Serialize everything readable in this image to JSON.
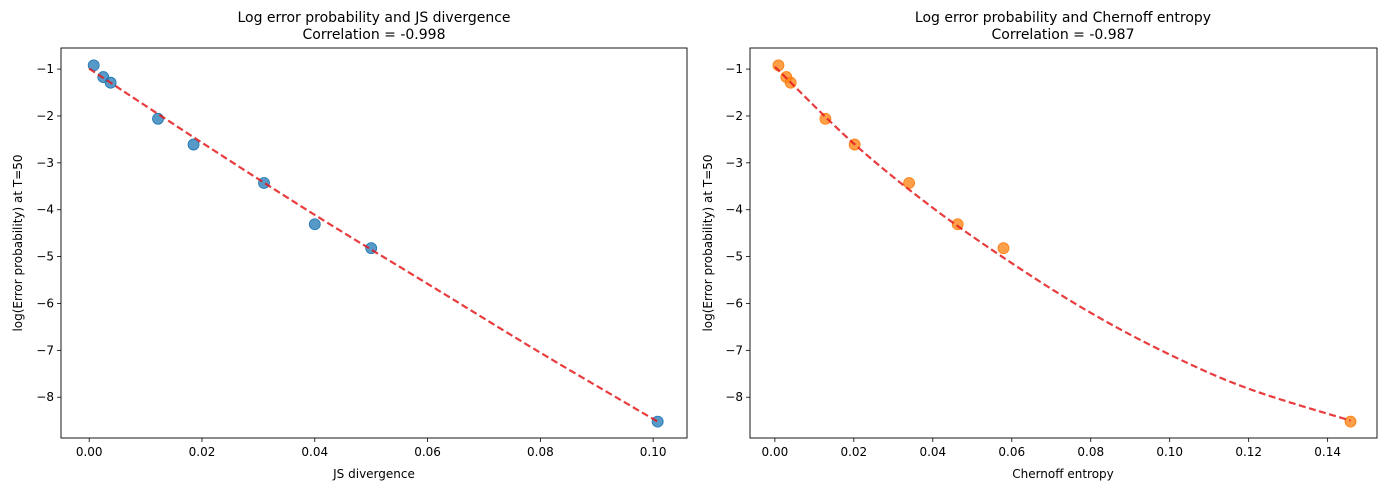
{
  "chart_data": [
    {
      "type": "scatter",
      "title": "Log error probability and JS divergence",
      "subtitle": "Correlation = -0.998",
      "xlabel": "JS divergence",
      "ylabel": "log(Error probability) at T=50",
      "xlim": [
        -0.005,
        0.106
      ],
      "ylim": [
        -8.87,
        -0.55
      ],
      "xticks": [
        0.0,
        0.02,
        0.04,
        0.06,
        0.08,
        0.1
      ],
      "xtick_labels": [
        "0.00",
        "0.02",
        "0.04",
        "0.06",
        "0.08",
        "0.10"
      ],
      "yticks": [
        -1,
        -2,
        -3,
        -4,
        -5,
        -6,
        -7,
        -8
      ],
      "ytick_labels": [
        "−1",
        "−2",
        "−3",
        "−4",
        "−5",
        "−6",
        "−7",
        "−8"
      ],
      "grid": false,
      "points": {
        "x": [
          0.0008,
          0.0025,
          0.0038,
          0.0122,
          0.0185,
          0.031,
          0.04,
          0.05,
          0.1008
        ],
        "y": [
          -0.92,
          -1.17,
          -1.29,
          -2.06,
          -2.61,
          -3.43,
          -4.31,
          -4.82,
          -8.52
        ],
        "color": "#1f77b4"
      },
      "fit": {
        "x": [
          0.0,
          0.02,
          0.04,
          0.06,
          0.08,
          0.1008
        ],
        "y": [
          -0.99,
          -2.57,
          -4.11,
          -5.58,
          -7.05,
          -8.52
        ],
        "color": "#e41a1c",
        "style": "dashed"
      }
    },
    {
      "type": "scatter",
      "title": "Log error probability and Chernoff entropy",
      "subtitle": "Correlation = -0.987",
      "xlabel": "Chernoff entropy",
      "ylabel": "log(Error probability) at T=50",
      "xlim": [
        -0.0063,
        0.1525
      ],
      "ylim": [
        -8.87,
        -0.55
      ],
      "xticks": [
        0.0,
        0.02,
        0.04,
        0.06,
        0.08,
        0.1,
        0.12,
        0.14
      ],
      "xtick_labels": [
        "0.00",
        "0.02",
        "0.04",
        "0.06",
        "0.08",
        "0.10",
        "0.12",
        "0.14"
      ],
      "yticks": [
        -1,
        -2,
        -3,
        -4,
        -5,
        -6,
        -7,
        -8
      ],
      "ytick_labels": [
        "−1",
        "−2",
        "−3",
        "−4",
        "−5",
        "−6",
        "−7",
        "−8"
      ],
      "grid": false,
      "points": {
        "x": [
          0.0009,
          0.0029,
          0.004,
          0.0128,
          0.0202,
          0.034,
          0.0463,
          0.0579,
          0.1458
        ],
        "y": [
          -0.92,
          -1.17,
          -1.29,
          -2.06,
          -2.61,
          -3.43,
          -4.31,
          -4.82,
          -8.52
        ],
        "color": "#ff7f0e"
      },
      "fit": {
        "x": [
          0.0,
          0.02,
          0.04,
          0.06,
          0.08,
          0.1,
          0.12,
          0.1458
        ],
        "y": [
          -0.95,
          -2.59,
          -3.96,
          -5.14,
          -6.2,
          -7.09,
          -7.82,
          -8.5
        ],
        "color": "#e41a1c",
        "style": "dashed"
      }
    }
  ]
}
